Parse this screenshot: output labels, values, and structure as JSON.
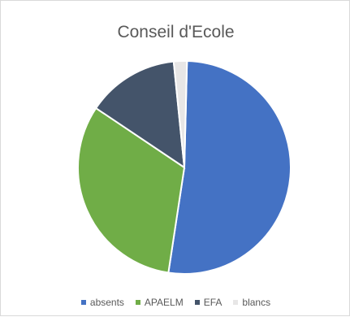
{
  "chart_data": {
    "type": "pie",
    "title": "Conseil d'Ecole",
    "categories": [
      "absents",
      "APAELM",
      "EFA",
      "blancs"
    ],
    "values": [
      52,
      32,
      14,
      2
    ],
    "colors": [
      "#4472c4",
      "#70ad47",
      "#44546a",
      "#e7e6e6"
    ],
    "legend_position": "bottom"
  }
}
